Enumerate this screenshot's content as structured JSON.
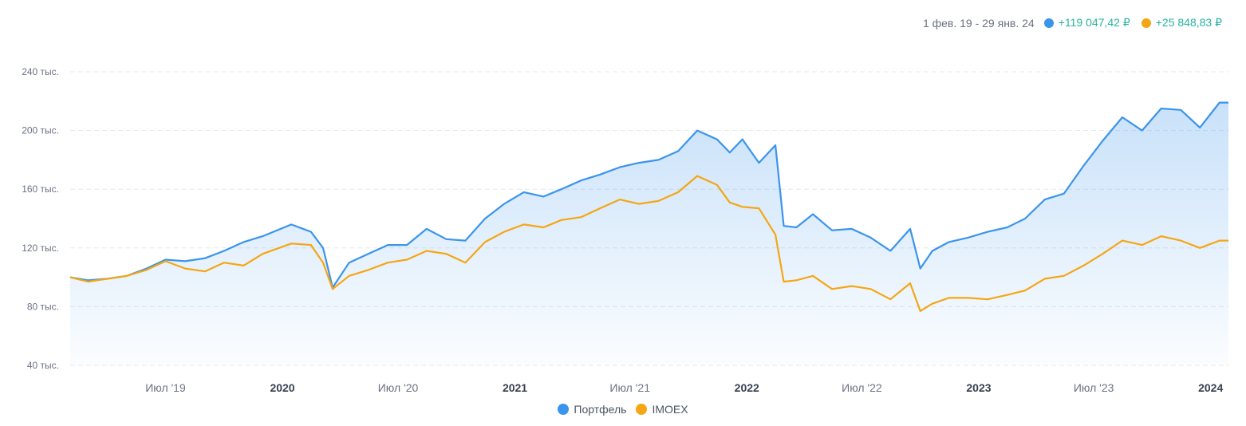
{
  "header": {
    "period": "1 фев. 19 - 29 янв. 24",
    "portfolio_gain": "+119 047,42 ₽",
    "imoex_gain": "+25 848,83 ₽"
  },
  "colors": {
    "portfolio": "#3b94eb",
    "imoex": "#f5a614",
    "gain": "#26b3a2",
    "grid": "#e5e7eb",
    "text": "#6b7280"
  },
  "chart_data": {
    "type": "area",
    "x_start": "2019-02-01",
    "x_end": "2024-01-29",
    "ylim": [
      40000,
      240000
    ],
    "y_ticks": [
      {
        "value": 40000,
        "label": "40 тыс."
      },
      {
        "value": 80000,
        "label": "80 тыс."
      },
      {
        "value": 120000,
        "label": "120 тыс."
      },
      {
        "value": 160000,
        "label": "160 тыс."
      },
      {
        "value": 200000,
        "label": "200 тыс."
      },
      {
        "value": 240000,
        "label": "240 тыс."
      }
    ],
    "x_ticks": [
      {
        "date": "2019-07-01",
        "label": "Июл '19",
        "bold": false
      },
      {
        "date": "2020-01-01",
        "label": "2020",
        "bold": true
      },
      {
        "date": "2020-07-01",
        "label": "Июл '20",
        "bold": false
      },
      {
        "date": "2021-01-01",
        "label": "2021",
        "bold": true
      },
      {
        "date": "2021-07-01",
        "label": "Июл '21",
        "bold": false
      },
      {
        "date": "2022-01-01",
        "label": "2022",
        "bold": true
      },
      {
        "date": "2022-07-01",
        "label": "Июл '22",
        "bold": false
      },
      {
        "date": "2023-01-01",
        "label": "2023",
        "bold": true
      },
      {
        "date": "2023-07-01",
        "label": "Июл '23",
        "bold": false
      },
      {
        "date": "2024-01-01",
        "label": "2024",
        "bold": true
      }
    ],
    "grid": true,
    "legend_position": "bottom-center",
    "series": [
      {
        "name": "Портфель",
        "filled": true,
        "points": [
          [
            "2019-02-01",
            100000
          ],
          [
            "2019-03-01",
            98000
          ],
          [
            "2019-04-01",
            99000
          ],
          [
            "2019-05-01",
            101000
          ],
          [
            "2019-06-01",
            106000
          ],
          [
            "2019-07-01",
            112000
          ],
          [
            "2019-08-01",
            111000
          ],
          [
            "2019-09-01",
            113000
          ],
          [
            "2019-10-01",
            118000
          ],
          [
            "2019-11-01",
            124000
          ],
          [
            "2019-12-01",
            128000
          ],
          [
            "2020-01-15",
            136000
          ],
          [
            "2020-02-15",
            131000
          ],
          [
            "2020-03-05",
            120000
          ],
          [
            "2020-03-20",
            93000
          ],
          [
            "2020-04-15",
            110000
          ],
          [
            "2020-05-15",
            116000
          ],
          [
            "2020-06-15",
            122000
          ],
          [
            "2020-07-15",
            122000
          ],
          [
            "2020-08-15",
            133000
          ],
          [
            "2020-09-15",
            126000
          ],
          [
            "2020-10-15",
            125000
          ],
          [
            "2020-11-15",
            140000
          ],
          [
            "2020-12-15",
            150000
          ],
          [
            "2021-01-15",
            158000
          ],
          [
            "2021-02-15",
            155000
          ],
          [
            "2021-03-15",
            160000
          ],
          [
            "2021-04-15",
            166000
          ],
          [
            "2021-05-15",
            170000
          ],
          [
            "2021-06-15",
            175000
          ],
          [
            "2021-07-15",
            178000
          ],
          [
            "2021-08-15",
            180000
          ],
          [
            "2021-09-15",
            186000
          ],
          [
            "2021-10-15",
            200000
          ],
          [
            "2021-11-15",
            194000
          ],
          [
            "2021-12-05",
            185000
          ],
          [
            "2021-12-25",
            194000
          ],
          [
            "2022-01-20",
            178000
          ],
          [
            "2022-02-15",
            190000
          ],
          [
            "2022-02-28",
            135000
          ],
          [
            "2022-03-20",
            134000
          ],
          [
            "2022-04-15",
            143000
          ],
          [
            "2022-05-15",
            132000
          ],
          [
            "2022-06-15",
            133000
          ],
          [
            "2022-07-15",
            127000
          ],
          [
            "2022-08-15",
            118000
          ],
          [
            "2022-09-15",
            133000
          ],
          [
            "2022-10-01",
            106000
          ],
          [
            "2022-10-20",
            118000
          ],
          [
            "2022-11-15",
            124000
          ],
          [
            "2022-12-15",
            127000
          ],
          [
            "2023-01-15",
            131000
          ],
          [
            "2023-02-15",
            134000
          ],
          [
            "2023-03-15",
            140000
          ],
          [
            "2023-04-15",
            153000
          ],
          [
            "2023-05-15",
            157000
          ],
          [
            "2023-06-15",
            176000
          ],
          [
            "2023-07-15",
            193000
          ],
          [
            "2023-08-15",
            209000
          ],
          [
            "2023-09-15",
            200000
          ],
          [
            "2023-10-15",
            215000
          ],
          [
            "2023-11-15",
            214000
          ],
          [
            "2023-12-15",
            202000
          ],
          [
            "2024-01-15",
            219000
          ],
          [
            "2024-01-29",
            219000
          ]
        ]
      },
      {
        "name": "IMOEX",
        "filled": false,
        "points": [
          [
            "2019-02-01",
            100000
          ],
          [
            "2019-03-01",
            97000
          ],
          [
            "2019-04-01",
            99000
          ],
          [
            "2019-05-01",
            101000
          ],
          [
            "2019-06-01",
            105000
          ],
          [
            "2019-07-01",
            111000
          ],
          [
            "2019-08-01",
            106000
          ],
          [
            "2019-09-01",
            104000
          ],
          [
            "2019-10-01",
            110000
          ],
          [
            "2019-11-01",
            108000
          ],
          [
            "2019-12-01",
            116000
          ],
          [
            "2020-01-15",
            123000
          ],
          [
            "2020-02-15",
            122000
          ],
          [
            "2020-03-05",
            110000
          ],
          [
            "2020-03-20",
            92000
          ],
          [
            "2020-04-15",
            101000
          ],
          [
            "2020-05-15",
            105000
          ],
          [
            "2020-06-15",
            110000
          ],
          [
            "2020-07-15",
            112000
          ],
          [
            "2020-08-15",
            118000
          ],
          [
            "2020-09-15",
            116000
          ],
          [
            "2020-10-15",
            110000
          ],
          [
            "2020-11-15",
            124000
          ],
          [
            "2020-12-15",
            131000
          ],
          [
            "2021-01-15",
            136000
          ],
          [
            "2021-02-15",
            134000
          ],
          [
            "2021-03-15",
            139000
          ],
          [
            "2021-04-15",
            141000
          ],
          [
            "2021-05-15",
            147000
          ],
          [
            "2021-06-15",
            153000
          ],
          [
            "2021-07-15",
            150000
          ],
          [
            "2021-08-15",
            152000
          ],
          [
            "2021-09-15",
            158000
          ],
          [
            "2021-10-15",
            169000
          ],
          [
            "2021-11-15",
            163000
          ],
          [
            "2021-12-05",
            151000
          ],
          [
            "2021-12-25",
            148000
          ],
          [
            "2022-01-20",
            147000
          ],
          [
            "2022-02-15",
            129000
          ],
          [
            "2022-02-28",
            97000
          ],
          [
            "2022-03-20",
            98000
          ],
          [
            "2022-04-15",
            101000
          ],
          [
            "2022-05-15",
            92000
          ],
          [
            "2022-06-15",
            94000
          ],
          [
            "2022-07-15",
            92000
          ],
          [
            "2022-08-15",
            85000
          ],
          [
            "2022-09-15",
            96000
          ],
          [
            "2022-10-01",
            77000
          ],
          [
            "2022-10-20",
            82000
          ],
          [
            "2022-11-15",
            86000
          ],
          [
            "2022-12-15",
            86000
          ],
          [
            "2023-01-15",
            85000
          ],
          [
            "2023-02-15",
            88000
          ],
          [
            "2023-03-15",
            91000
          ],
          [
            "2023-04-15",
            99000
          ],
          [
            "2023-05-15",
            101000
          ],
          [
            "2023-06-15",
            108000
          ],
          [
            "2023-07-15",
            116000
          ],
          [
            "2023-08-15",
            125000
          ],
          [
            "2023-09-15",
            122000
          ],
          [
            "2023-10-15",
            128000
          ],
          [
            "2023-11-15",
            125000
          ],
          [
            "2023-12-15",
            120000
          ],
          [
            "2024-01-15",
            125000
          ],
          [
            "2024-01-29",
            125000
          ]
        ]
      }
    ]
  }
}
